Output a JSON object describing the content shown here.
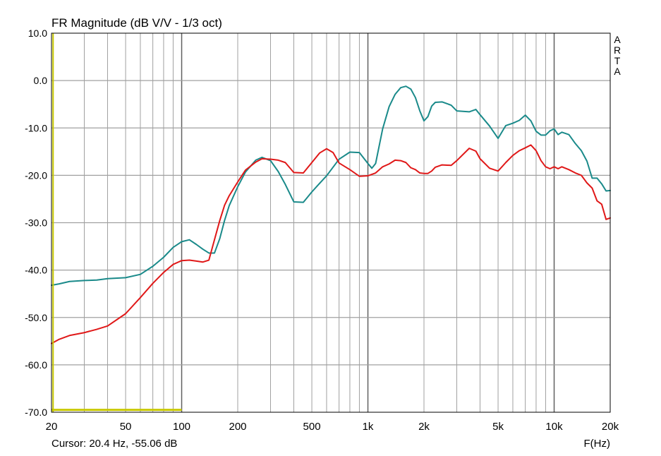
{
  "window": {
    "title": "FR Magnitude (dB V/V - 1/3 oct)",
    "brand_letters": [
      "A",
      "R",
      "T",
      "A"
    ],
    "cursor_readout": "Cursor: 20.4 Hz, -55.06 dB",
    "x_axis_title": "F(Hz)"
  },
  "colors": {
    "background": "#ffffff",
    "grid": "#a0a0a0",
    "grid_major": "#606060",
    "frame": "#000000",
    "series_teal": "#1a8a8a",
    "series_red": "#e01818",
    "cursor": "#c8c800"
  },
  "chart_data": {
    "type": "line",
    "title": "FR Magnitude (dB V/V - 1/3 oct)",
    "xlabel": "F(Hz)",
    "ylabel": "",
    "xscale": "log",
    "xlim": [
      20,
      20000
    ],
    "ylim": [
      -70,
      10
    ],
    "grid": true,
    "x_ticks": [
      20,
      50,
      100,
      200,
      500,
      1000,
      2000,
      5000,
      10000,
      20000
    ],
    "x_tick_labels": [
      "20",
      "50",
      "100",
      "200",
      "500",
      "1k",
      "2k",
      "5k",
      "10k",
      "20k"
    ],
    "y_ticks": [
      10,
      0,
      -10,
      -20,
      -30,
      -40,
      -50,
      -60,
      -70
    ],
    "y_tick_labels": [
      "10.0",
      "0.0",
      "-10.0",
      "-20.0",
      "-30.0",
      "-40.0",
      "-50.0",
      "-60.0",
      "-70.0"
    ],
    "cursor": {
      "x": 20.4,
      "y_min": -70,
      "y_max": 10
    },
    "cursor_marker": {
      "x_from": 20,
      "x_to": 100,
      "y": -69.5
    },
    "series": [
      {
        "color": "#1a8a8a",
        "x": [
          20,
          22,
          25,
          30,
          35,
          40,
          50,
          60,
          70,
          80,
          90,
          100,
          110,
          120,
          130,
          140,
          150,
          160,
          170,
          180,
          200,
          220,
          250,
          270,
          300,
          330,
          360,
          400,
          450,
          500,
          550,
          600,
          700,
          800,
          900,
          1000,
          1050,
          1100,
          1200,
          1300,
          1400,
          1500,
          1600,
          1700,
          1800,
          1900,
          2000,
          2100,
          2200,
          2300,
          2500,
          2800,
          3000,
          3500,
          3800,
          4000,
          4500,
          5000,
          5500,
          6000,
          6500,
          7000,
          7500,
          8000,
          8500,
          9000,
          9500,
          10000,
          10500,
          11000,
          12000,
          13000,
          14000,
          15000,
          16000,
          17000,
          18000,
          19000,
          20000
        ],
        "values": [
          -43.2,
          -42.9,
          -42.4,
          -42.2,
          -42.1,
          -41.8,
          -41.6,
          -40.9,
          -39.2,
          -37.3,
          -35.2,
          -34,
          -33.6,
          -34.6,
          -35.6,
          -36.4,
          -36.4,
          -33.4,
          -29.5,
          -26.4,
          -22.4,
          -19.3,
          -16.8,
          -16.2,
          -16.9,
          -19.2,
          -21.9,
          -25.6,
          -25.7,
          -23.5,
          -21.7,
          -20.1,
          -16.6,
          -15.1,
          -15.2,
          -17.5,
          -18.5,
          -17.5,
          -10.2,
          -5.5,
          -2.9,
          -1.5,
          -1.2,
          -1.8,
          -3.6,
          -6.4,
          -8.5,
          -7.6,
          -5.4,
          -4.6,
          -4.5,
          -5.2,
          -6.4,
          -6.6,
          -6.1,
          -7.2,
          -9.6,
          -12.2,
          -9.5,
          -9,
          -8.4,
          -7.3,
          -8.5,
          -10.7,
          -11.5,
          -11.5,
          -10.6,
          -10.2,
          -11.4,
          -10.9,
          -11.4,
          -13.3,
          -14.8,
          -17,
          -20.6,
          -20.6,
          -21.8,
          -23.3,
          -23.2
        ]
      },
      {
        "color": "#e01818",
        "x": [
          20,
          22,
          25,
          30,
          35,
          40,
          50,
          60,
          70,
          80,
          90,
          100,
          110,
          120,
          130,
          140,
          150,
          160,
          170,
          180,
          200,
          220,
          250,
          270,
          300,
          330,
          360,
          400,
          450,
          500,
          550,
          600,
          650,
          700,
          800,
          900,
          1000,
          1100,
          1200,
          1300,
          1400,
          1500,
          1600,
          1700,
          1800,
          1900,
          2000,
          2100,
          2200,
          2300,
          2500,
          2800,
          3000,
          3500,
          3800,
          4000,
          4500,
          5000,
          5500,
          6000,
          6500,
          7000,
          7500,
          8000,
          8500,
          9000,
          9500,
          10000,
          10500,
          11000,
          12000,
          13000,
          14000,
          15000,
          16000,
          17000,
          18000,
          19000,
          20000
        ],
        "values": [
          -55.5,
          -54.6,
          -53.8,
          -53.2,
          -52.5,
          -51.8,
          -49.2,
          -45.8,
          -42.8,
          -40.5,
          -38.8,
          -38,
          -37.9,
          -38.1,
          -38.3,
          -37.9,
          -33.6,
          -29.6,
          -26.3,
          -24.3,
          -21.4,
          -18.9,
          -17.2,
          -16.5,
          -16.6,
          -16.8,
          -17.3,
          -19.4,
          -19.5,
          -17.3,
          -15.3,
          -14.4,
          -15.2,
          -17.4,
          -18.8,
          -20.2,
          -20.1,
          -19.5,
          -18.2,
          -17.6,
          -16.8,
          -16.9,
          -17.3,
          -18.4,
          -18.8,
          -19.5,
          -19.6,
          -19.6,
          -19.1,
          -18.3,
          -17.8,
          -17.9,
          -16.9,
          -14.3,
          -14.9,
          -16.5,
          -18.5,
          -19.1,
          -17.3,
          -15.8,
          -14.8,
          -14.2,
          -13.6,
          -14.8,
          -16.9,
          -18.2,
          -18.6,
          -18.2,
          -18.6,
          -18.2,
          -18.8,
          -19.5,
          -20,
          -21.6,
          -22.7,
          -25.4,
          -26.1,
          -29.3,
          -29
        ]
      }
    ]
  }
}
